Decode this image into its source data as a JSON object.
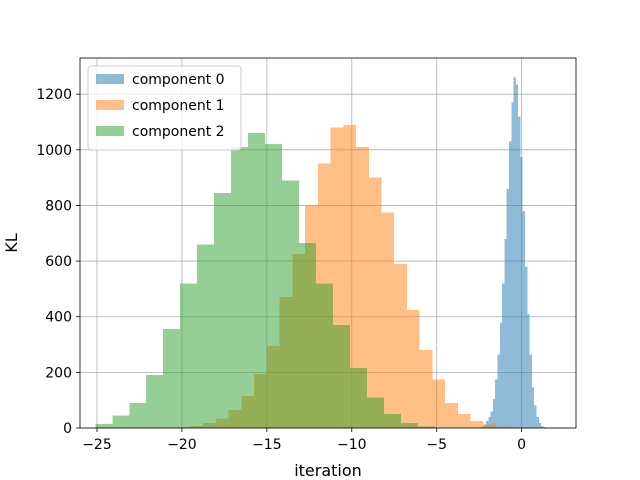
{
  "chart_data": {
    "type": "histogram",
    "title": "",
    "xlabel": "iteration",
    "ylabel": "KL",
    "xlim": [
      -26.0,
      3.2
    ],
    "ylim": [
      0,
      1330
    ],
    "xticks": [
      -25,
      -20,
      -15,
      -10,
      -5,
      0
    ],
    "yticks": [
      0,
      200,
      400,
      600,
      800,
      1000,
      1200
    ],
    "grid": true,
    "legend_position": "top-left",
    "series": [
      {
        "name": "component 0",
        "color": "#1f77b4",
        "alpha": 0.5,
        "bin_width": 0.135,
        "bin_start": -2.5,
        "counts": [
          2,
          5,
          12,
          25,
          40,
          60,
          105,
          175,
          265,
          380,
          520,
          680,
          860,
          1030,
          1170,
          1260,
          1235,
          1120,
          975,
          780,
          580,
          410,
          265,
          145,
          80,
          40,
          18,
          8,
          3
        ]
      },
      {
        "name": "component 1",
        "color": "#ff7f0e",
        "alpha": 0.5,
        "bin_width": 0.75,
        "bin_start": -20.25,
        "counts": [
          3,
          8,
          18,
          35,
          65,
          115,
          195,
          295,
          470,
          625,
          800,
          950,
          1080,
          1090,
          1010,
          900,
          775,
          590,
          425,
          280,
          175,
          90,
          50,
          25,
          12,
          5
        ]
      },
      {
        "name": "component 2",
        "color": "#2ca02c",
        "alpha": 0.5,
        "bin_width": 1.0,
        "bin_start": -25.1,
        "counts": [
          15,
          45,
          90,
          190,
          355,
          520,
          660,
          845,
          1010,
          1060,
          1020,
          890,
          665,
          520,
          370,
          215,
          110,
          50,
          18,
          5
        ]
      }
    ]
  }
}
